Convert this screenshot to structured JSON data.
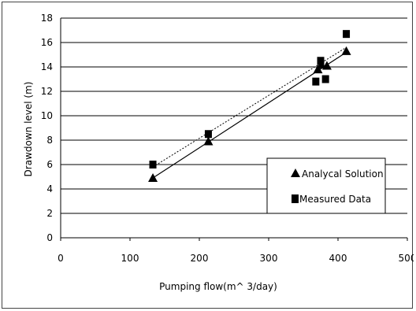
{
  "chart_data": {
    "type": "scatter",
    "title": "",
    "xlabel": "Pumping flow(m^ 3/day)",
    "ylabel": "Drawdown level (m)",
    "xlim": [
      0,
      500
    ],
    "ylim": [
      0,
      18
    ],
    "xticks": [
      0,
      100,
      200,
      300,
      400,
      500
    ],
    "yticks": [
      0,
      2,
      4,
      6,
      8,
      10,
      12,
      14,
      16,
      18
    ],
    "grid": "horizontal",
    "legend_position": "lower-right",
    "series": [
      {
        "name": "Analycal Solution",
        "marker": "triangle",
        "x": [
          133,
          213,
          371,
          376,
          384,
          412
        ],
        "y": [
          4.9,
          7.9,
          13.8,
          14.2,
          14.1,
          15.3
        ]
      },
      {
        "name": "Measured Data",
        "marker": "square",
        "x": [
          133,
          213,
          368,
          375,
          382,
          412
        ],
        "y": [
          6.0,
          8.5,
          12.8,
          14.5,
          13.0,
          16.7
        ]
      }
    ],
    "trendlines": [
      {
        "series": "Analycal Solution",
        "x": [
          133,
          412
        ],
        "y": [
          4.9,
          15.2
        ]
      },
      {
        "series": "Measured Data",
        "x": [
          133,
          412
        ],
        "y": [
          5.8,
          15.6
        ]
      }
    ]
  }
}
